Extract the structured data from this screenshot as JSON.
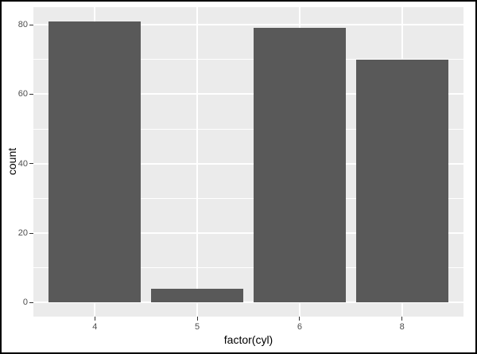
{
  "figure": {
    "background": "#FFFFFF",
    "border_color": "#000000"
  },
  "chart_data": {
    "type": "bar",
    "title": "",
    "xlabel": "factor(cyl)",
    "ylabel": "count",
    "categories": [
      "4",
      "5",
      "6",
      "8"
    ],
    "values": [
      81,
      4,
      79,
      70
    ],
    "yticks": [
      0,
      20,
      40,
      60,
      80
    ],
    "yminor": [
      10,
      30,
      50,
      70
    ],
    "ylim": [
      -4.05,
      85.05
    ],
    "xlim": [
      0.4,
      4.6
    ],
    "bar_width": 0.9,
    "grid": true,
    "legend": "none",
    "style": "ggplot2",
    "colors": {
      "bar_fill": "#595959",
      "panel_bg": "#EBEBEB",
      "grid_major": "#FFFFFF",
      "grid_minor": "#FFFFFF",
      "tick_mark": "#333333",
      "tick_label": "#4D4D4D",
      "axis_title": "#000000"
    }
  }
}
